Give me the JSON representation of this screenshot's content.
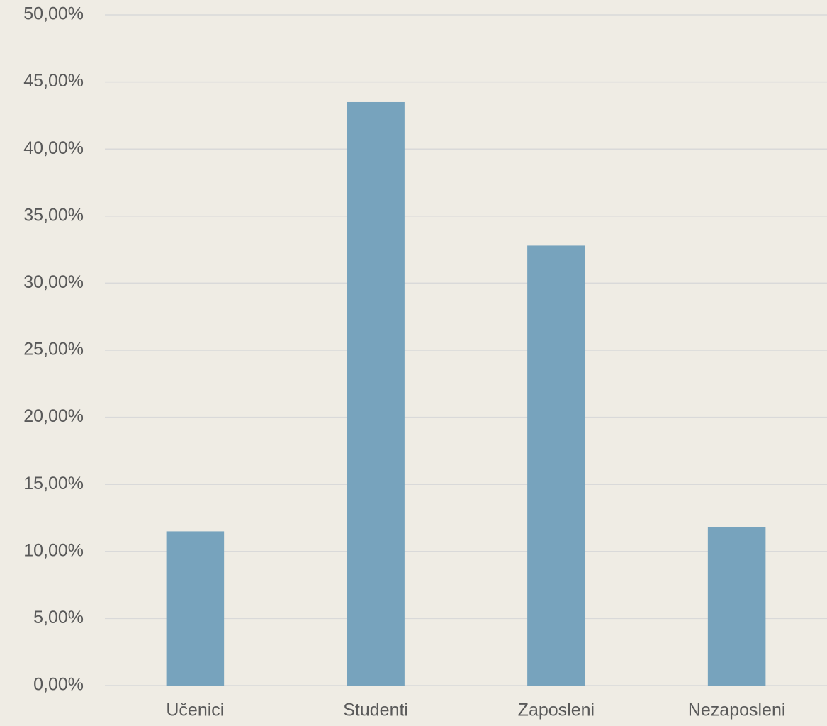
{
  "chart_data": {
    "type": "bar",
    "categories": [
      "Učenici",
      "Studenti",
      "Zaposleni",
      "Nezaposleni"
    ],
    "values": [
      11.5,
      43.5,
      32.8,
      11.8
    ],
    "color": "#77a3bd",
    "ylim": [
      0,
      50
    ],
    "yticks": [
      {
        "value": 0,
        "label": "0,00%"
      },
      {
        "value": 5,
        "label": "5,00%"
      },
      {
        "value": 10,
        "label": "10,00%"
      },
      {
        "value": 15,
        "label": "15,00%"
      },
      {
        "value": 20,
        "label": "20,00%"
      },
      {
        "value": 25,
        "label": "25,00%"
      },
      {
        "value": 30,
        "label": "30,00%"
      },
      {
        "value": 35,
        "label": "35,00%"
      },
      {
        "value": 40,
        "label": "40,00%"
      },
      {
        "value": 45,
        "label": "45,00%"
      },
      {
        "value": 50,
        "label": "50,00%"
      }
    ],
    "grid": true
  }
}
